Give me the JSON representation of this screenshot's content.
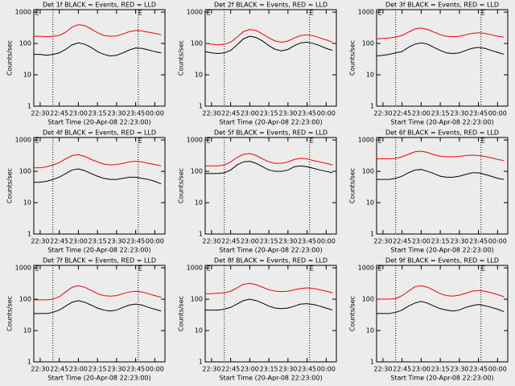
{
  "chart_data": [
    {
      "type": "line",
      "title": "Det 1f BLACK = Events, RED = LLD",
      "xlabel": "Start Time (20-Apr-08 22:23:00)",
      "ylabel": "Counts/sec",
      "x": [
        "22:25",
        "22:30",
        "22:35",
        "22:40",
        "22:45",
        "22:50",
        "22:55",
        "23:00",
        "23:05",
        "23:10",
        "23:15",
        "23:20",
        "23:25",
        "23:30",
        "23:35",
        "23:40",
        "23:45",
        "23:50",
        "23:55",
        "00:00",
        "00:05"
      ],
      "xlim": [
        "22:25",
        "00:08"
      ],
      "xticks": [
        "22:30",
        "22:45",
        "23:00",
        "23:15",
        "23:30",
        "23:45",
        "00:00"
      ],
      "ylim": [
        1,
        1200
      ],
      "yticks": [
        1,
        10,
        100,
        1000
      ],
      "log_y": true,
      "vlines": [
        "22:40",
        "23:47"
      ],
      "events": [
        {
          "x": "22:26",
          "label": "E"
        },
        {
          "x": "23:47",
          "label": "E"
        }
      ],
      "series": [
        {
          "color": "#ff0000",
          "values": [
            170,
            170,
            165,
            170,
            180,
            230,
            330,
            400,
            370,
            290,
            220,
            180,
            170,
            175,
            200,
            240,
            260,
            250,
            230,
            210,
            190
          ]
        },
        {
          "color": "#000000",
          "values": [
            45,
            45,
            42,
            45,
            50,
            65,
            90,
            105,
            95,
            75,
            55,
            45,
            40,
            42,
            50,
            62,
            72,
            70,
            62,
            55,
            50
          ]
        }
      ]
    },
    {
      "type": "line",
      "title": "Det 2f BLACK = Events, RED = LLD",
      "xlabel": "Start Time (20-Apr-08 22:23:00)",
      "ylabel": "Counts/sec",
      "x": [
        "22:25",
        "22:30",
        "22:35",
        "22:40",
        "22:45",
        "22:50",
        "22:55",
        "23:00",
        "23:05",
        "23:10",
        "23:15",
        "23:20",
        "23:25",
        "23:30",
        "23:35",
        "23:40",
        "23:45",
        "23:50",
        "23:55",
        "00:00",
        "00:05"
      ],
      "xlim": [
        "22:25",
        "00:08"
      ],
      "xticks": [
        "22:30",
        "22:45",
        "23:00",
        "23:15",
        "23:30",
        "23:45",
        "00:00"
      ],
      "ylim": [
        1,
        1200
      ],
      "yticks": [
        1,
        10,
        100,
        1000
      ],
      "log_y": true,
      "vlines": [
        "22:40",
        "23:47"
      ],
      "events": [
        {
          "x": "22:26",
          "label": "E"
        },
        {
          "x": "23:47",
          "label": "E"
        }
      ],
      "series": [
        {
          "color": "#ff0000",
          "values": [
            100,
            95,
            90,
            95,
            110,
            160,
            240,
            280,
            260,
            200,
            150,
            120,
            110,
            120,
            150,
            180,
            190,
            175,
            150,
            130,
            110
          ]
        },
        {
          "color": "#000000",
          "values": [
            55,
            50,
            48,
            50,
            60,
            90,
            140,
            170,
            155,
            120,
            85,
            65,
            58,
            65,
            85,
            105,
            110,
            100,
            85,
            70,
            60
          ]
        }
      ]
    },
    {
      "type": "line",
      "title": "Det 3f BLACK = Events, RED = LLD",
      "xlabel": "Start Time (20-Apr-08 22:23:00)",
      "ylabel": "Counts/sec",
      "x": [
        "22:25",
        "22:30",
        "22:35",
        "22:40",
        "22:45",
        "22:50",
        "22:55",
        "23:00",
        "23:05",
        "23:10",
        "23:15",
        "23:20",
        "23:25",
        "23:30",
        "23:35",
        "23:40",
        "23:45",
        "23:50",
        "23:55",
        "00:00",
        "00:05"
      ],
      "xlim": [
        "22:25",
        "00:08"
      ],
      "xticks": [
        "22:30",
        "22:45",
        "23:00",
        "23:15",
        "23:30",
        "23:45",
        "00:00"
      ],
      "ylim": [
        1,
        1200
      ],
      "yticks": [
        1,
        10,
        100,
        1000
      ],
      "log_y": true,
      "vlines": [
        "22:40",
        "23:47"
      ],
      "events": [
        {
          "x": "22:26",
          "label": "E"
        },
        {
          "x": "23:47",
          "label": "E"
        }
      ],
      "series": [
        {
          "color": "#ff0000",
          "values": [
            140,
            145,
            150,
            160,
            180,
            230,
            290,
            310,
            280,
            230,
            190,
            170,
            165,
            170,
            190,
            210,
            220,
            210,
            190,
            170,
            160
          ]
        },
        {
          "color": "#000000",
          "values": [
            40,
            42,
            45,
            50,
            55,
            75,
            95,
            105,
            95,
            75,
            60,
            50,
            48,
            50,
            60,
            70,
            75,
            70,
            60,
            52,
            45
          ]
        }
      ]
    },
    {
      "type": "line",
      "title": "Det 4f BLACK = Events, RED = LLD",
      "xlabel": "Start Time (20-Apr-08 22:23:00)",
      "ylabel": "Counts/sec",
      "x": [
        "22:25",
        "22:30",
        "22:35",
        "22:40",
        "22:45",
        "22:50",
        "22:55",
        "23:00",
        "23:05",
        "23:10",
        "23:15",
        "23:20",
        "23:25",
        "23:30",
        "23:35",
        "23:40",
        "23:45",
        "23:50",
        "23:55",
        "00:00",
        "00:05"
      ],
      "xlim": [
        "22:25",
        "00:08"
      ],
      "xticks": [
        "22:30",
        "22:45",
        "23:00",
        "23:15",
        "23:30",
        "23:45",
        "00:00"
      ],
      "ylim": [
        1,
        1200
      ],
      "yticks": [
        1,
        10,
        100,
        1000
      ],
      "log_y": true,
      "vlines": [
        "22:40",
        "23:47"
      ],
      "events": [
        {
          "x": "22:26",
          "label": "E"
        },
        {
          "x": "23:47",
          "label": "E"
        }
      ],
      "series": [
        {
          "color": "#ff0000",
          "values": [
            130,
            130,
            140,
            160,
            190,
            250,
            320,
            340,
            300,
            240,
            200,
            170,
            160,
            165,
            180,
            200,
            210,
            200,
            180,
            165,
            150
          ]
        },
        {
          "color": "#000000",
          "values": [
            45,
            45,
            48,
            55,
            65,
            85,
            110,
            120,
            105,
            85,
            70,
            60,
            55,
            55,
            60,
            65,
            65,
            60,
            55,
            48,
            40
          ]
        }
      ]
    },
    {
      "type": "line",
      "title": "Det 5f BLACK = Events, RED = LLD",
      "xlabel": "Start Time (20-Apr-08 22:23:00)",
      "ylabel": "Counts/sec",
      "x": [
        "22:25",
        "22:30",
        "22:35",
        "22:40",
        "22:45",
        "22:50",
        "22:55",
        "23:00",
        "23:05",
        "23:10",
        "23:15",
        "23:20",
        "23:25",
        "23:30",
        "23:35",
        "23:40",
        "23:45",
        "23:50",
        "23:55",
        "00:00",
        "00:05"
      ],
      "xlim": [
        "22:25",
        "00:08"
      ],
      "xticks": [
        "22:30",
        "22:45",
        "23:00",
        "23:15",
        "23:30",
        "23:45",
        "00:00"
      ],
      "ylim": [
        1,
        1200
      ],
      "yticks": [
        1,
        10,
        100,
        1000
      ],
      "log_y": true,
      "vlines": [
        "22:40",
        "23:47"
      ],
      "events": [
        {
          "x": "22:26",
          "label": "E"
        },
        {
          "x": "23:47",
          "label": "E"
        }
      ],
      "series": [
        {
          "color": "#ff0000",
          "values": [
            150,
            150,
            150,
            160,
            200,
            280,
            350,
            370,
            320,
            250,
            200,
            180,
            180,
            200,
            240,
            260,
            250,
            220,
            200,
            180,
            160
          ]
        },
        {
          "color": "#000000",
          "values": [
            85,
            85,
            85,
            90,
            110,
            160,
            200,
            210,
            180,
            140,
            110,
            100,
            100,
            110,
            140,
            150,
            140,
            125,
            110,
            100,
            90
          ]
        }
      ]
    },
    {
      "type": "line",
      "title": "Det 6f BLACK = Events, RED = LLD",
      "xlabel": "Start Time (20-Apr-08 22:23:00)",
      "ylabel": "Counts/sec",
      "x": [
        "22:25",
        "22:30",
        "22:35",
        "22:40",
        "22:45",
        "22:50",
        "22:55",
        "23:00",
        "23:05",
        "23:10",
        "23:15",
        "23:20",
        "23:25",
        "23:30",
        "23:35",
        "23:40",
        "23:45",
        "23:50",
        "23:55",
        "00:00",
        "00:05"
      ],
      "xlim": [
        "22:25",
        "00:08"
      ],
      "xticks": [
        "22:30",
        "22:45",
        "23:00",
        "23:15",
        "23:30",
        "23:45",
        "00:00"
      ],
      "ylim": [
        1,
        1200
      ],
      "yticks": [
        1,
        10,
        100,
        1000
      ],
      "log_y": true,
      "vlines": [
        "22:40",
        "23:47"
      ],
      "events": [
        {
          "x": "22:26",
          "label": "E"
        },
        {
          "x": "23:47",
          "label": "E"
        }
      ],
      "series": [
        {
          "color": "#ff0000",
          "values": [
            250,
            250,
            250,
            260,
            290,
            350,
            420,
            440,
            400,
            340,
            300,
            290,
            290,
            300,
            320,
            330,
            320,
            300,
            270,
            240,
            220
          ]
        },
        {
          "color": "#000000",
          "values": [
            55,
            55,
            55,
            60,
            70,
            90,
            110,
            115,
            100,
            85,
            70,
            65,
            65,
            70,
            80,
            90,
            90,
            80,
            70,
            60,
            55
          ]
        }
      ]
    },
    {
      "type": "line",
      "title": "Det 7f BLACK = Events, RED = LLD",
      "xlabel": "Start Time (20-Apr-08 22:23:00)",
      "ylabel": "Counts/sec",
      "x": [
        "22:25",
        "22:30",
        "22:35",
        "22:40",
        "22:45",
        "22:50",
        "22:55",
        "23:00",
        "23:05",
        "23:10",
        "23:15",
        "23:20",
        "23:25",
        "23:30",
        "23:35",
        "23:40",
        "23:45",
        "23:50",
        "23:55",
        "00:00",
        "00:05"
      ],
      "xlim": [
        "22:25",
        "00:08"
      ],
      "xticks": [
        "22:30",
        "22:45",
        "23:00",
        "23:15",
        "23:30",
        "23:45",
        "00:00"
      ],
      "ylim": [
        1,
        1200
      ],
      "yticks": [
        1,
        10,
        100,
        1000
      ],
      "log_y": true,
      "vlines": [
        "22:40",
        "23:47"
      ],
      "events": [
        {
          "x": "22:26",
          "label": "E"
        },
        {
          "x": "23:47",
          "label": "E"
        }
      ],
      "series": [
        {
          "color": "#ff0000",
          "values": [
            95,
            95,
            95,
            100,
            120,
            170,
            240,
            270,
            240,
            190,
            150,
            130,
            125,
            130,
            150,
            170,
            180,
            170,
            150,
            130,
            115
          ]
        },
        {
          "color": "#000000",
          "values": [
            35,
            35,
            35,
            38,
            45,
            60,
            80,
            90,
            80,
            65,
            52,
            45,
            42,
            45,
            55,
            65,
            70,
            65,
            55,
            48,
            42
          ]
        }
      ]
    },
    {
      "type": "line",
      "title": "Det 8f BLACK = Events, RED = LLD",
      "xlabel": "Start Time (20-Apr-08 22:23:00)",
      "ylabel": "Counts/sec",
      "x": [
        "22:25",
        "22:30",
        "22:35",
        "22:40",
        "22:45",
        "22:50",
        "22:55",
        "23:00",
        "23:05",
        "23:10",
        "23:15",
        "23:20",
        "23:25",
        "23:30",
        "23:35",
        "23:40",
        "23:45",
        "23:50",
        "23:55",
        "00:00",
        "00:05"
      ],
      "xlim": [
        "22:25",
        "00:08"
      ],
      "xticks": [
        "22:30",
        "22:45",
        "23:00",
        "23:15",
        "23:30",
        "23:45",
        "00:00"
      ],
      "ylim": [
        1,
        1200
      ],
      "yticks": [
        1,
        10,
        100,
        1000
      ],
      "log_y": true,
      "vlines": [
        "22:40",
        "23:47"
      ],
      "events": [
        {
          "x": "22:26",
          "label": "E"
        },
        {
          "x": "23:47",
          "label": "E"
        }
      ],
      "series": [
        {
          "color": "#ff0000",
          "values": [
            150,
            150,
            155,
            160,
            180,
            230,
            300,
            320,
            290,
            240,
            200,
            180,
            175,
            180,
            200,
            220,
            230,
            220,
            200,
            180,
            160
          ]
        },
        {
          "color": "#000000",
          "values": [
            45,
            45,
            45,
            48,
            55,
            70,
            90,
            100,
            90,
            75,
            60,
            52,
            50,
            52,
            60,
            70,
            72,
            68,
            60,
            52,
            45
          ]
        }
      ]
    },
    {
      "type": "line",
      "title": "Det 9f BLACK = Events, RED = LLD",
      "xlabel": "Start Time (20-Apr-08 22:23:00)",
      "ylabel": "Counts/sec",
      "x": [
        "22:25",
        "22:30",
        "22:35",
        "22:40",
        "22:45",
        "22:50",
        "22:55",
        "23:00",
        "23:05",
        "23:10",
        "23:15",
        "23:20",
        "23:25",
        "23:30",
        "23:35",
        "23:40",
        "23:45",
        "23:50",
        "23:55",
        "00:00",
        "00:05"
      ],
      "xlim": [
        "22:25",
        "00:08"
      ],
      "xticks": [
        "22:30",
        "22:45",
        "23:00",
        "23:15",
        "23:30",
        "23:45",
        "00:00"
      ],
      "ylim": [
        1,
        1200
      ],
      "yticks": [
        1,
        10,
        100,
        1000
      ],
      "log_y": true,
      "vlines": [
        "22:40",
        "23:47"
      ],
      "events": [
        {
          "x": "22:26",
          "label": "E"
        },
        {
          "x": "23:47",
          "label": "E"
        }
      ],
      "series": [
        {
          "color": "#ff0000",
          "values": [
            100,
            100,
            100,
            105,
            130,
            180,
            250,
            270,
            240,
            190,
            150,
            130,
            125,
            135,
            155,
            180,
            190,
            180,
            160,
            140,
            120
          ]
        },
        {
          "color": "#000000",
          "values": [
            35,
            35,
            35,
            38,
            45,
            60,
            75,
            85,
            75,
            60,
            50,
            45,
            42,
            45,
            55,
            62,
            68,
            62,
            55,
            48,
            40
          ]
        }
      ]
    }
  ]
}
